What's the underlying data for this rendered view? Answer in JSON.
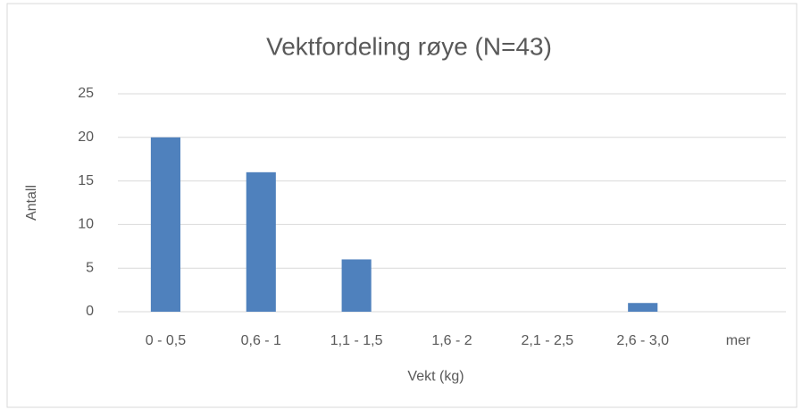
{
  "chart_data": {
    "type": "bar",
    "title": "Vektfordeling røye (N=43)",
    "xlabel": "Vekt (kg)",
    "ylabel": "Antall",
    "categories": [
      "0 - 0,5",
      "0,6 - 1",
      "1,1 - 1,5",
      "1,6 - 2",
      "2,1 - 2,5",
      "2,6 - 3,0",
      "mer"
    ],
    "values": [
      20,
      16,
      6,
      0,
      0,
      1,
      0
    ],
    "color": "#4f81bd",
    "ylim": [
      0,
      25
    ],
    "yticks": [
      0,
      5,
      10,
      15,
      20,
      25
    ],
    "grid": true
  }
}
